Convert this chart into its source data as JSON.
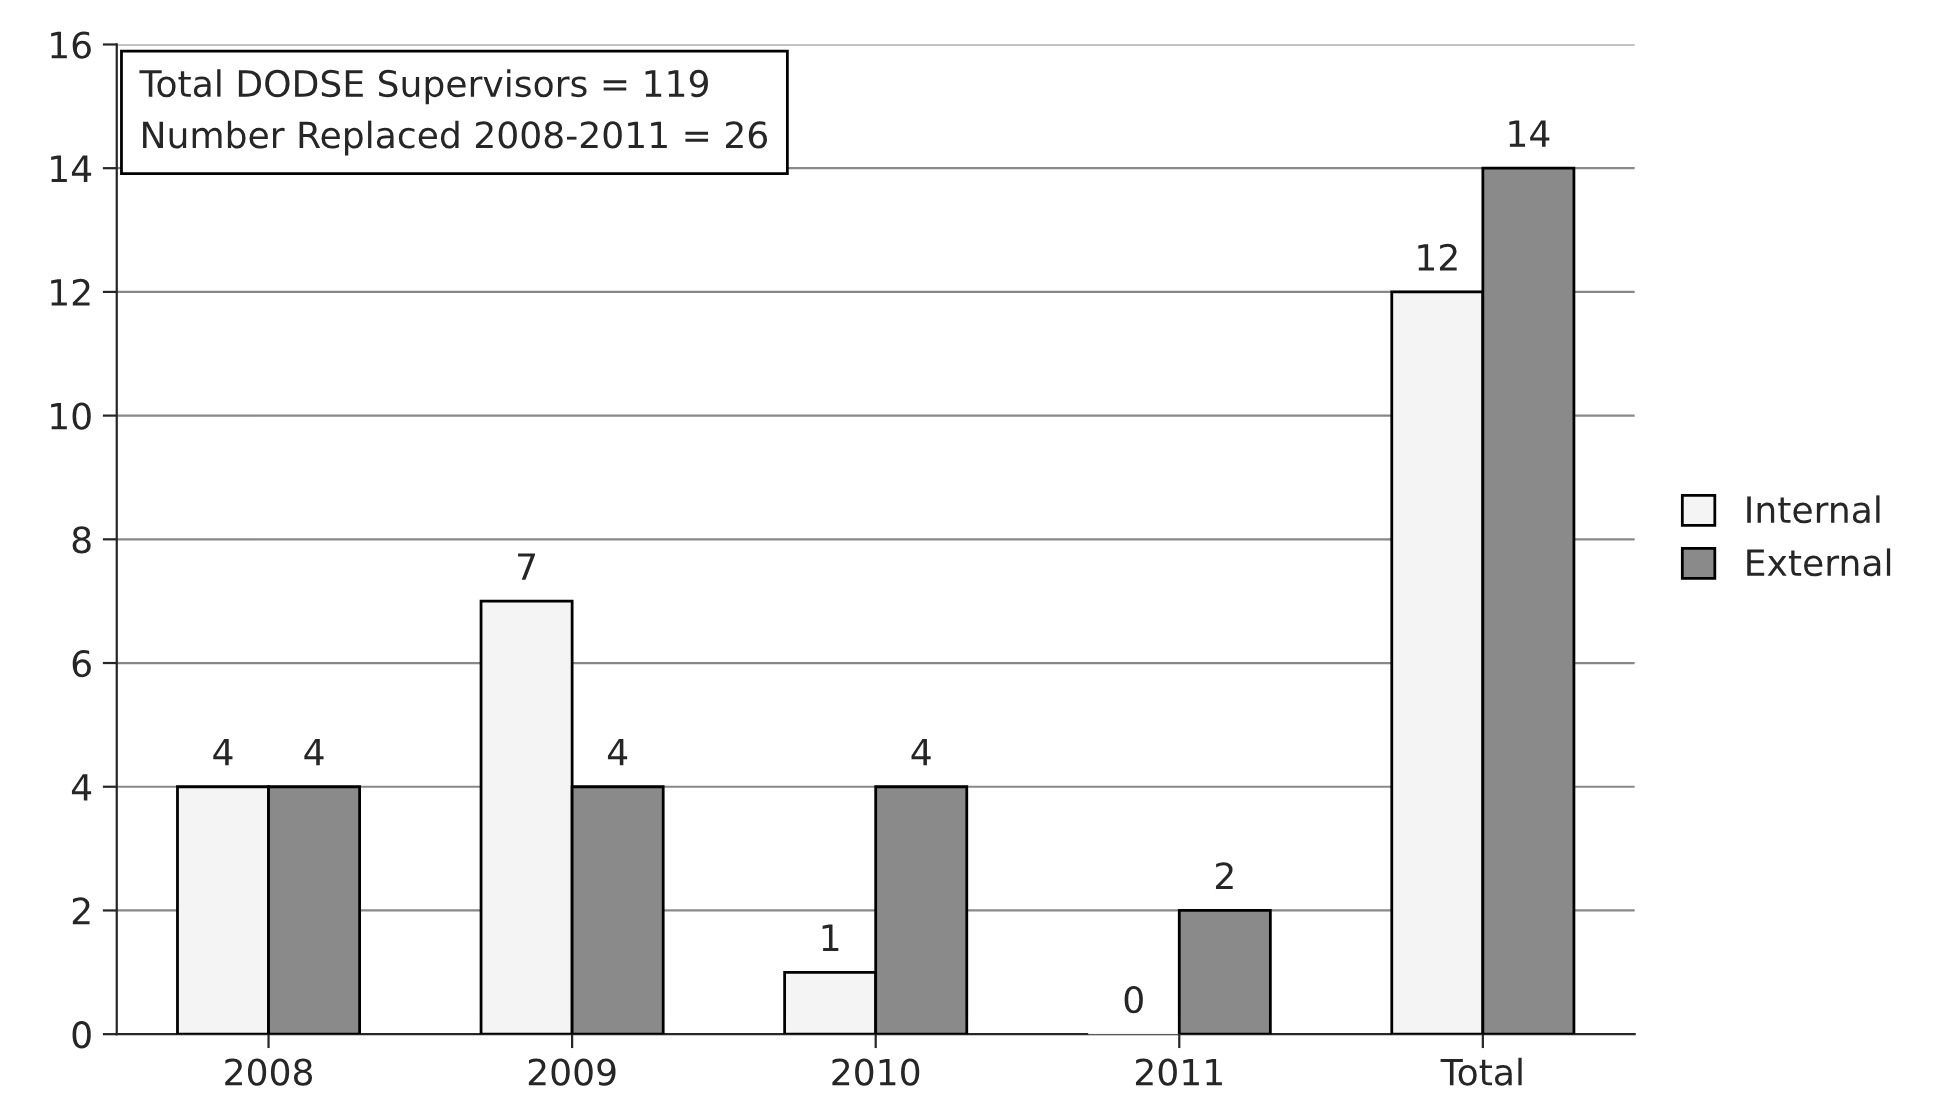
{
  "chart_data": {
    "type": "bar",
    "categories": [
      "2008",
      "2009",
      "2010",
      "2011",
      "Total"
    ],
    "series": [
      {
        "name": "Internal",
        "color": "#f4f4f4",
        "values": [
          4,
          7,
          1,
          0,
          12
        ]
      },
      {
        "name": "External",
        "color": "#8a8a8a",
        "values": [
          4,
          4,
          4,
          2,
          14
        ]
      }
    ],
    "ylim": [
      0,
      16
    ],
    "yticks": [
      0,
      2,
      4,
      6,
      8,
      10,
      12,
      14,
      16
    ],
    "grid": "y",
    "legend": "right",
    "data_labels": true,
    "annotations": [
      "Total DODSE Supervisors = 119",
      "Number Replaced 2008-2011 = 26"
    ]
  }
}
